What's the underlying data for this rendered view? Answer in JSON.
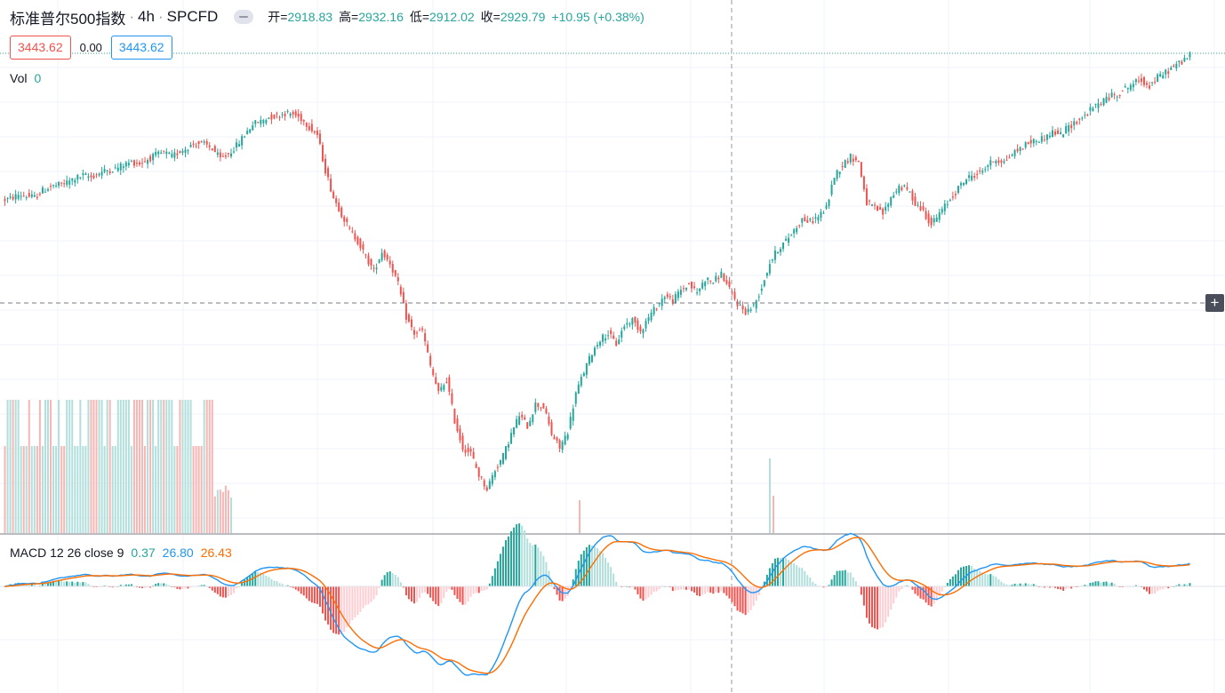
{
  "symbol": {
    "title": "标准普尔500指数",
    "separator": "·",
    "interval": "4h",
    "exchange": "SPCFD"
  },
  "ohlc": {
    "open_label": "开=",
    "open": "2918.83",
    "high_label": "高=",
    "high": "2932.16",
    "low_label": "低=",
    "low": "2912.02",
    "close_label": "收=",
    "close": "2929.79",
    "change": "+10.95 (+0.38%)"
  },
  "quote": {
    "bid": "3443.62",
    "spread": "0.00",
    "ask": "3443.62"
  },
  "volume": {
    "label": "Vol",
    "value": "0"
  },
  "macd": {
    "label": "MACD 12 26 close 9",
    "histogram": "0.37",
    "macd": "26.80",
    "signal": "26.43"
  },
  "colors": {
    "up": "#26a69a",
    "down": "#ef5350",
    "macd_line": "#2196f3",
    "signal_line": "#ff6d00",
    "grid": "#f0f3fa",
    "crosshair": "#9598a1"
  },
  "icons": {
    "eye_toggle": "hide-indicator-icon",
    "crosshair_plus": "plus-icon"
  },
  "chart_data": {
    "type": "candlestick",
    "description_series": "S&P 500 4h candles with Volume and MACD(12,26,9)",
    "close_path": [
      2910,
      2915,
      2930,
      2925,
      2920,
      2945,
      2960,
      2965,
      2975,
      2990,
      3000,
      2995,
      3010,
      3020,
      3025,
      3040,
      3050,
      3045,
      3060,
      3075,
      3085,
      3070,
      3090,
      3105,
      3120,
      3115,
      3100,
      3060,
      3080,
      3110,
      3150,
      3190,
      3200,
      3215,
      3220,
      3230,
      3225,
      3210,
      3180,
      3150,
      3020,
      2920,
      2860,
      2800,
      2760,
      2700,
      2650,
      2720,
      2680,
      2600,
      2480,
      2420,
      2430,
      2300,
      2200,
      2250,
      2100,
      2000,
      1980,
      1900,
      1850,
      1920,
      1970,
      2050,
      2120,
      2080,
      2160,
      2150,
      2050,
      2000,
      2060,
      2200,
      2280,
      2350,
      2400,
      2420,
      2380,
      2450,
      2470,
      2430,
      2480,
      2520,
      2560,
      2540,
      2580,
      2600,
      2570,
      2620,
      2610,
      2640,
      2580,
      2530,
      2500,
      2520,
      2590,
      2680,
      2730,
      2760,
      2800,
      2840,
      2830,
      2850,
      2880,
      3000,
      3040,
      3070,
      3050,
      2900,
      2880,
      2860,
      2920,
      2960,
      2950,
      2900,
      2870,
      2820,
      2860,
      2900,
      2940,
      2980,
      3000,
      3010,
      3040,
      3060,
      3050,
      3080,
      3100,
      3120,
      3130,
      3140,
      3160,
      3150,
      3180,
      3200,
      3220,
      3250,
      3270,
      3290,
      3300,
      3320,
      3340,
      3350,
      3330,
      3360,
      3380,
      3400,
      3420,
      3443
    ],
    "volume_note": "Tall equal volume bars only on first ~55 candles; near-zero afterwards",
    "ylim_note": "price axis labels not shown in screenshot"
  }
}
